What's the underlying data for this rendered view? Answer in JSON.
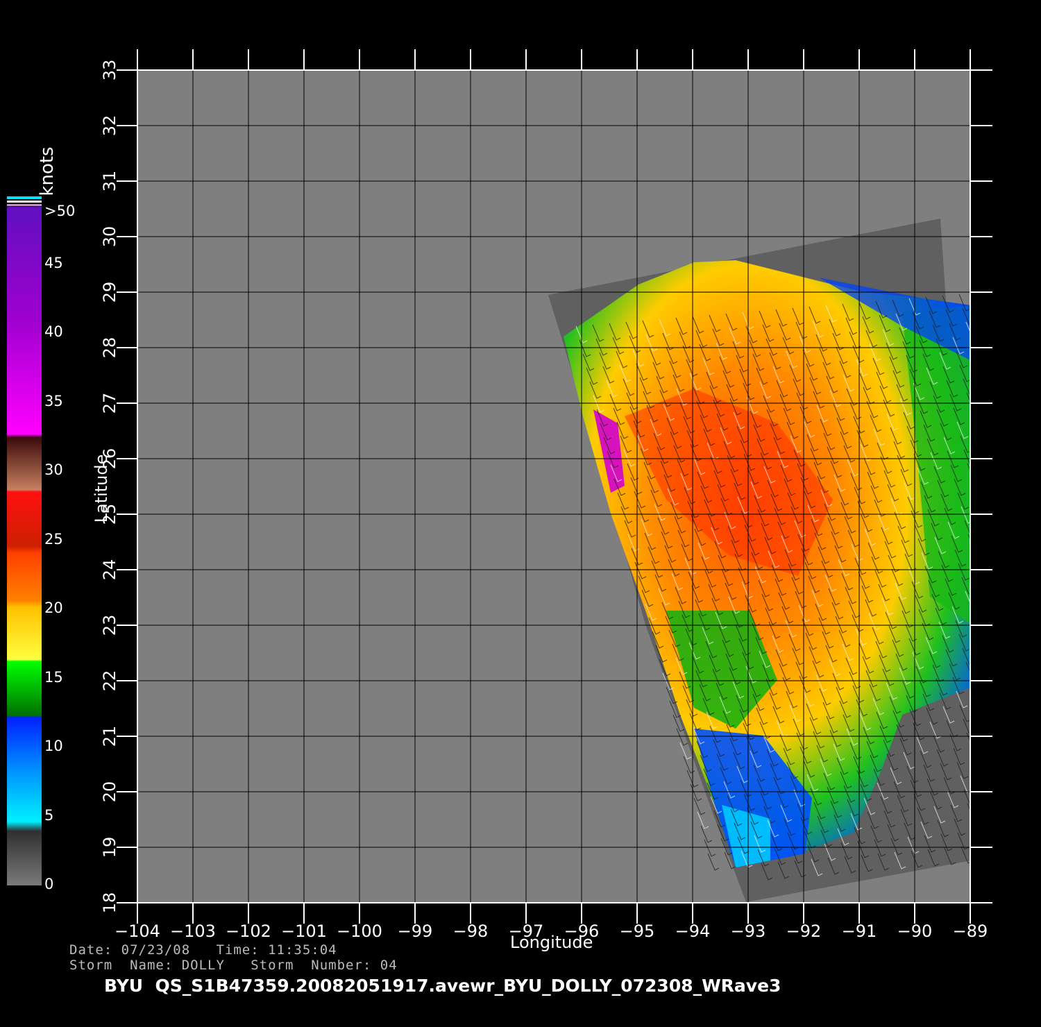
{
  "map": {
    "x_axis_label": "Longitude",
    "y_axis_label": "Latitude",
    "lon_range": [
      -104,
      -89
    ],
    "lat_range": [
      18,
      33
    ],
    "lon_ticks": [
      "−104",
      "−103",
      "−102",
      "−101",
      "−100",
      "−99",
      "−98",
      "−97",
      "−96",
      "−95",
      "−94",
      "−93",
      "−92",
      "−91",
      "−90",
      "−89"
    ],
    "lat_ticks": [
      "18",
      "19",
      "20",
      "21",
      "22",
      "23",
      "24",
      "25",
      "26",
      "27",
      "28",
      "29",
      "30",
      "31",
      "32",
      "33"
    ],
    "grid": true,
    "background": "#000000",
    "no_data_color": "#7f7f7f",
    "land_color": "#555555"
  },
  "colorbar": {
    "units": "knots",
    "labels": [
      "0",
      "5",
      "10",
      "15",
      "20",
      "25",
      "30",
      "35",
      "40",
      "45",
      ">50"
    ],
    "colors": {
      "0-5": "#4a4a4a",
      "5-10": "#00b0ff",
      "10-15": "#0040ff",
      "15-20": "#00c000",
      "20-25": "#ffd400",
      "25-30": "#ff7000",
      "30-35": "#ff2000",
      "35-40": "#8b4030",
      "40-45": "#ff00ff",
      "45-50": "#8000d0"
    }
  },
  "info": {
    "date_line": "Date: 07/23/08   Time: 11:35:04",
    "storm_line": "Storm  Name: DOLLY   Storm  Number: 04",
    "filename": "BYU  QS_S1B47359.20082051917.avewr_BYU_DOLLY_072308_WRave3"
  }
}
